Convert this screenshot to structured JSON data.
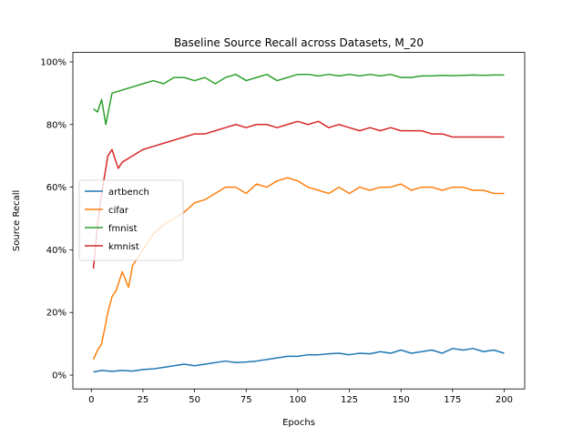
{
  "chart_data": {
    "type": "line",
    "title": "Baseline Source Recall across Datasets, M_20",
    "xlabel": "Epochs",
    "ylabel": "Source Recall",
    "xlim": [
      -8.95,
      209.95
    ],
    "ylim": [
      -0.044,
      1.03
    ],
    "x_ticks": [
      0,
      25,
      50,
      75,
      100,
      125,
      150,
      175,
      200
    ],
    "y_ticks": [
      0,
      0.2,
      0.4,
      0.6,
      0.8,
      1.0
    ],
    "y_tick_labels": [
      "0%",
      "20%",
      "40%",
      "60%",
      "80%",
      "100%"
    ],
    "grid": false,
    "legend_position": "center-left",
    "series": [
      {
        "name": "artbench",
        "color": "#1f77b4",
        "x": [
          1,
          5,
          10,
          15,
          20,
          25,
          30,
          35,
          40,
          45,
          50,
          55,
          60,
          65,
          70,
          75,
          80,
          85,
          90,
          95,
          100,
          105,
          110,
          115,
          120,
          125,
          130,
          135,
          140,
          145,
          150,
          155,
          160,
          165,
          170,
          175,
          180,
          185,
          190,
          195,
          200
        ],
        "values": [
          0.01,
          0.015,
          0.012,
          0.015,
          0.013,
          0.018,
          0.02,
          0.025,
          0.03,
          0.035,
          0.03,
          0.035,
          0.04,
          0.045,
          0.04,
          0.042,
          0.045,
          0.05,
          0.055,
          0.06,
          0.06,
          0.065,
          0.065,
          0.068,
          0.07,
          0.065,
          0.07,
          0.068,
          0.075,
          0.07,
          0.08,
          0.07,
          0.075,
          0.08,
          0.07,
          0.085,
          0.08,
          0.085,
          0.075,
          0.08,
          0.07
        ]
      },
      {
        "name": "cifar",
        "color": "#ff7f0e",
        "x": [
          1,
          3,
          5,
          8,
          10,
          12,
          15,
          18,
          20,
          25,
          30,
          35,
          40,
          45,
          50,
          55,
          60,
          65,
          70,
          75,
          80,
          85,
          90,
          95,
          100,
          105,
          110,
          115,
          120,
          125,
          130,
          135,
          140,
          145,
          150,
          155,
          160,
          165,
          170,
          175,
          180,
          185,
          190,
          195,
          200
        ],
        "values": [
          0.05,
          0.08,
          0.1,
          0.2,
          0.25,
          0.27,
          0.33,
          0.28,
          0.35,
          0.4,
          0.45,
          0.48,
          0.5,
          0.52,
          0.55,
          0.56,
          0.58,
          0.6,
          0.6,
          0.58,
          0.61,
          0.6,
          0.62,
          0.63,
          0.62,
          0.6,
          0.59,
          0.58,
          0.6,
          0.58,
          0.6,
          0.59,
          0.6,
          0.6,
          0.61,
          0.59,
          0.6,
          0.6,
          0.59,
          0.6,
          0.6,
          0.59,
          0.59,
          0.58,
          0.58
        ]
      },
      {
        "name": "fmnist",
        "color": "#2ca02c",
        "x": [
          1,
          3,
          5,
          7,
          10,
          15,
          20,
          25,
          30,
          35,
          40,
          45,
          50,
          55,
          60,
          65,
          70,
          75,
          80,
          85,
          90,
          95,
          100,
          105,
          110,
          115,
          120,
          125,
          130,
          135,
          140,
          145,
          150,
          155,
          160,
          165,
          170,
          175,
          180,
          185,
          190,
          195,
          200
        ],
        "values": [
          0.85,
          0.84,
          0.88,
          0.8,
          0.9,
          0.91,
          0.92,
          0.93,
          0.94,
          0.93,
          0.95,
          0.95,
          0.94,
          0.95,
          0.93,
          0.95,
          0.96,
          0.94,
          0.95,
          0.96,
          0.94,
          0.95,
          0.96,
          0.96,
          0.955,
          0.96,
          0.955,
          0.96,
          0.955,
          0.96,
          0.955,
          0.96,
          0.95,
          0.95,
          0.955,
          0.955,
          0.957,
          0.956,
          0.957,
          0.958,
          0.957,
          0.958,
          0.958
        ]
      },
      {
        "name": "kmnist",
        "color": "#d62728",
        "x": [
          1,
          3,
          5,
          8,
          10,
          13,
          15,
          20,
          25,
          30,
          35,
          40,
          45,
          50,
          55,
          60,
          65,
          70,
          75,
          80,
          85,
          90,
          95,
          100,
          105,
          110,
          115,
          120,
          125,
          130,
          135,
          140,
          145,
          150,
          155,
          160,
          165,
          170,
          175,
          180,
          185,
          190,
          195,
          200
        ],
        "values": [
          0.34,
          0.48,
          0.58,
          0.7,
          0.72,
          0.66,
          0.68,
          0.7,
          0.72,
          0.73,
          0.74,
          0.75,
          0.76,
          0.77,
          0.77,
          0.78,
          0.79,
          0.8,
          0.79,
          0.8,
          0.8,
          0.79,
          0.8,
          0.81,
          0.8,
          0.81,
          0.79,
          0.8,
          0.79,
          0.78,
          0.79,
          0.78,
          0.79,
          0.78,
          0.78,
          0.78,
          0.77,
          0.77,
          0.76,
          0.76,
          0.76,
          0.76,
          0.76,
          0.76
        ]
      }
    ]
  }
}
